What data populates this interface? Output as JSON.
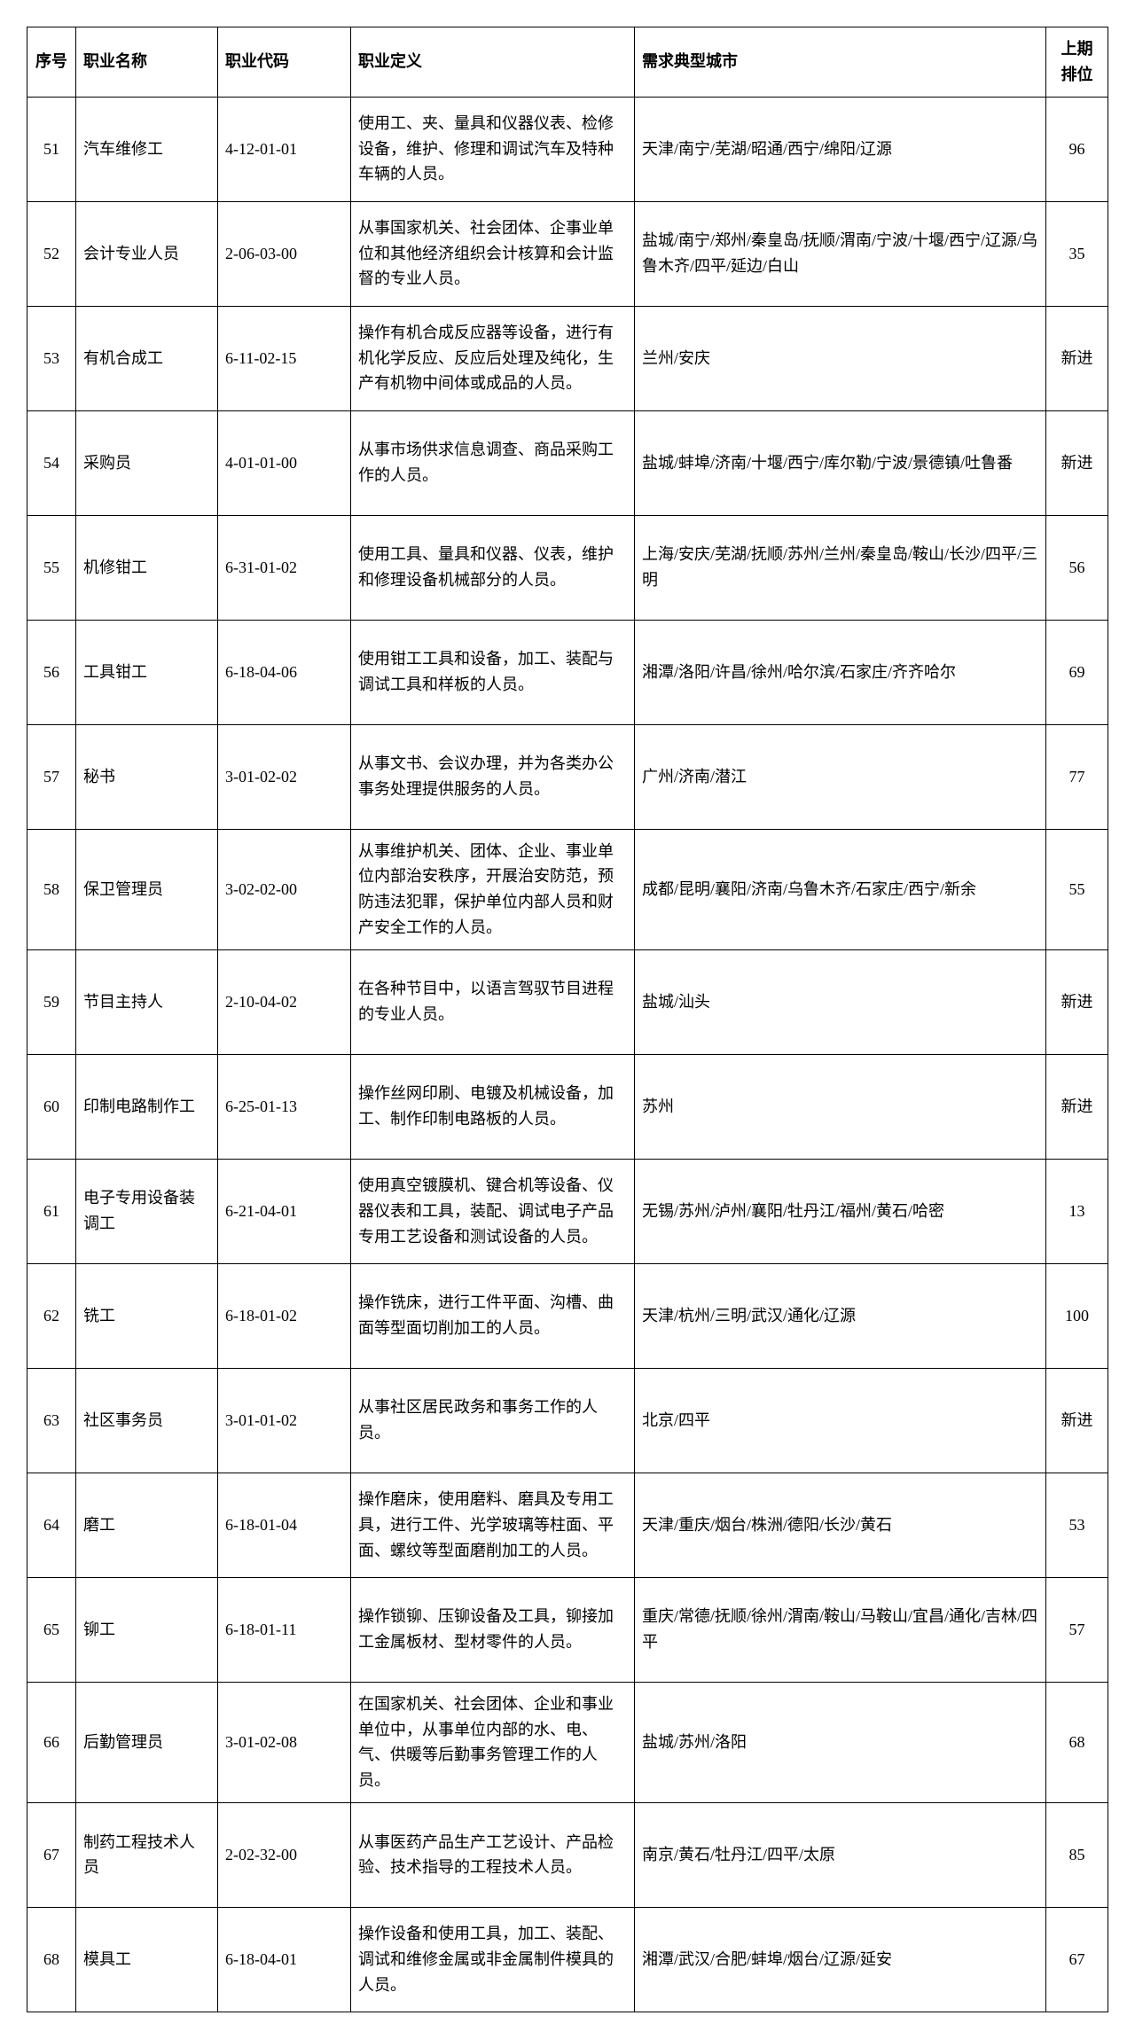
{
  "columns": {
    "index": "序号",
    "name": "职业名称",
    "code": "职业代码",
    "definition": "职业定义",
    "cities": "需求典型城市",
    "prev_rank": "上期排位"
  },
  "rows": [
    {
      "index": "51",
      "name": "汽车维修工",
      "code": "4-12-01-01",
      "definition": "使用工、夹、量具和仪器仪表、检修设备，维护、修理和调试汽车及特种车辆的人员。",
      "cities": "天津/南宁/芜湖/昭通/西宁/绵阳/辽源",
      "prev_rank": "96"
    },
    {
      "index": "52",
      "name": "会计专业人员",
      "code": "2-06-03-00",
      "definition": "从事国家机关、社会团体、企事业单位和其他经济组织会计核算和会计监督的专业人员。",
      "cities": "盐城/南宁/郑州/秦皇岛/抚顺/渭南/宁波/十堰/西宁/辽源/乌鲁木齐/四平/延边/白山",
      "prev_rank": "35"
    },
    {
      "index": "53",
      "name": "有机合成工",
      "code": "6-11-02-15",
      "definition": "操作有机合成反应器等设备，进行有机化学反应、反应后处理及纯化，生产有机物中间体或成品的人员。",
      "cities": "兰州/安庆",
      "prev_rank": "新进"
    },
    {
      "index": "54",
      "name": "采购员",
      "code": "4-01-01-00",
      "definition": "从事市场供求信息调查、商品采购工作的人员。",
      "cities": "盐城/蚌埠/济南/十堰/西宁/库尔勒/宁波/景德镇/吐鲁番",
      "prev_rank": "新进"
    },
    {
      "index": "55",
      "name": "机修钳工",
      "code": "6-31-01-02",
      "definition": "使用工具、量具和仪器、仪表，维护和修理设备机械部分的人员。",
      "cities": "上海/安庆/芜湖/抚顺/苏州/兰州/秦皇岛/鞍山/长沙/四平/三明",
      "prev_rank": "56"
    },
    {
      "index": "56",
      "name": "工具钳工",
      "code": "6-18-04-06",
      "definition": "使用钳工工具和设备，加工、装配与调试工具和样板的人员。",
      "cities": "湘潭/洛阳/许昌/徐州/哈尔滨/石家庄/齐齐哈尔",
      "prev_rank": "69"
    },
    {
      "index": "57",
      "name": "秘书",
      "code": "3-01-02-02",
      "definition": "从事文书、会议办理，并为各类办公事务处理提供服务的人员。",
      "cities": "广州/济南/潜江",
      "prev_rank": "77"
    },
    {
      "index": "58",
      "name": "保卫管理员",
      "code": "3-02-02-00",
      "definition": "从事维护机关、团体、企业、事业单位内部治安秩序，开展治安防范，预防违法犯罪，保护单位内部人员和财产安全工作的人员。",
      "cities": "成都/昆明/襄阳/济南/乌鲁木齐/石家庄/西宁/新余",
      "prev_rank": "55"
    },
    {
      "index": "59",
      "name": "节目主持人",
      "code": "2-10-04-02",
      "definition": "在各种节目中，以语言驾驭节目进程的专业人员。",
      "cities": "盐城/汕头",
      "prev_rank": "新进"
    },
    {
      "index": "60",
      "name": "印制电路制作工",
      "code": "6-25-01-13",
      "definition": "操作丝网印刷、电镀及机械设备，加工、制作印制电路板的人员。",
      "cities": "苏州",
      "prev_rank": "新进"
    },
    {
      "index": "61",
      "name": "电子专用设备装调工",
      "code": "6-21-04-01",
      "definition": "使用真空镀膜机、键合机等设备、仪器仪表和工具，装配、调试电子产品专用工艺设备和测试设备的人员。",
      "cities": "无锡/苏州/泸州/襄阳/牡丹江/福州/黄石/哈密",
      "prev_rank": "13"
    },
    {
      "index": "62",
      "name": "铣工",
      "code": "6-18-01-02",
      "definition": "操作铣床，进行工件平面、沟槽、曲面等型面切削加工的人员。",
      "cities": "天津/杭州/三明/武汉/通化/辽源",
      "prev_rank": "100"
    },
    {
      "index": "63",
      "name": "社区事务员",
      "code": "3-01-01-02",
      "definition": "从事社区居民政务和事务工作的人员。",
      "cities": "北京/四平",
      "prev_rank": "新进"
    },
    {
      "index": "64",
      "name": "磨工",
      "code": "6-18-01-04",
      "definition": "操作磨床，使用磨料、磨具及专用工具，进行工件、光学玻璃等柱面、平面、螺纹等型面磨削加工的人员。",
      "cities": "天津/重庆/烟台/株洲/德阳/长沙/黄石",
      "prev_rank": "53"
    },
    {
      "index": "65",
      "name": "铆工",
      "code": "6-18-01-11",
      "definition": "操作锁铆、压铆设备及工具，铆接加工金属板材、型材零件的人员。",
      "cities": "重庆/常德/抚顺/徐州/渭南/鞍山/马鞍山/宜昌/通化/吉林/四平",
      "prev_rank": "57"
    },
    {
      "index": "66",
      "name": "后勤管理员",
      "code": "3-01-02-08",
      "definition": "在国家机关、社会团体、企业和事业单位中，从事单位内部的水、电、气、供暖等后勤事务管理工作的人员。",
      "cities": "盐城/苏州/洛阳",
      "prev_rank": "68"
    },
    {
      "index": "67",
      "name": "制药工程技术人员",
      "code": "2-02-32-00",
      "definition": "从事医药产品生产工艺设计、产品检验、技术指导的工程技术人员。",
      "cities": "南京/黄石/牡丹江/四平/太原",
      "prev_rank": "85"
    },
    {
      "index": "68",
      "name": "模具工",
      "code": "6-18-04-01",
      "definition": "操作设备和使用工具，加工、装配、调试和维修金属或非金属制件模具的人员。",
      "cities": "湘潭/武汉/合肥/蚌埠/烟台/辽源/延安",
      "prev_rank": "67"
    }
  ]
}
